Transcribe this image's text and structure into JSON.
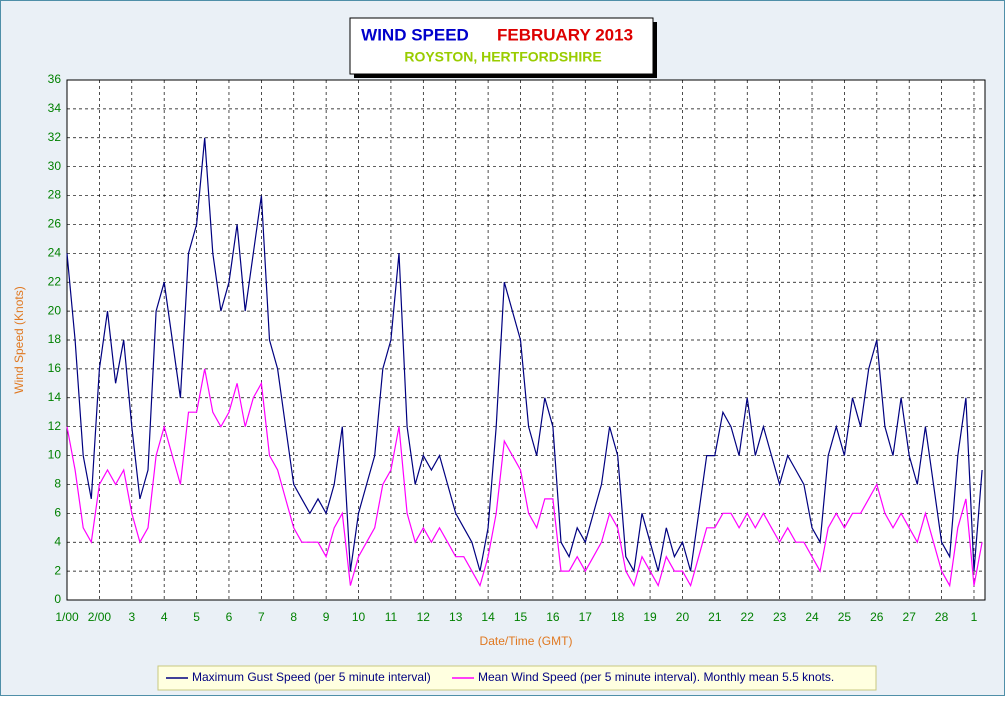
{
  "chart_data": {
    "type": "line",
    "title": "WIND SPEED",
    "title_period": "FEBRUARY 2013",
    "subtitle": "ROYSTON, HERTFORDSHIRE",
    "xlabel": "Date/Time (GMT)",
    "ylabel": "Wind Speed (Knots)",
    "xlim": [
      0,
      28.34
    ],
    "ylim": [
      0,
      36
    ],
    "yticks": [
      0,
      2,
      4,
      6,
      8,
      10,
      12,
      14,
      16,
      18,
      20,
      22,
      24,
      26,
      28,
      30,
      32,
      34,
      36
    ],
    "xticks": [
      {
        "value": 0,
        "label": "1/00"
      },
      {
        "value": 1,
        "label": "2/00"
      },
      {
        "value": 2,
        "label": "3"
      },
      {
        "value": 3,
        "label": "4"
      },
      {
        "value": 4,
        "label": "5"
      },
      {
        "value": 5,
        "label": "6"
      },
      {
        "value": 6,
        "label": "7"
      },
      {
        "value": 7,
        "label": "8"
      },
      {
        "value": 8,
        "label": "9"
      },
      {
        "value": 9,
        "label": "10"
      },
      {
        "value": 10,
        "label": "11"
      },
      {
        "value": 11,
        "label": "12"
      },
      {
        "value": 12,
        "label": "13"
      },
      {
        "value": 13,
        "label": "14"
      },
      {
        "value": 14,
        "label": "15"
      },
      {
        "value": 15,
        "label": "16"
      },
      {
        "value": 16,
        "label": "17"
      },
      {
        "value": 17,
        "label": "18"
      },
      {
        "value": 18,
        "label": "19"
      },
      {
        "value": 19,
        "label": "20"
      },
      {
        "value": 20,
        "label": "21"
      },
      {
        "value": 21,
        "label": "22"
      },
      {
        "value": 22,
        "label": "23"
      },
      {
        "value": 23,
        "label": "24"
      },
      {
        "value": 24,
        "label": "25"
      },
      {
        "value": 25,
        "label": "26"
      },
      {
        "value": 26,
        "label": "27"
      },
      {
        "value": 27,
        "label": "28"
      },
      {
        "value": 28,
        "label": "1"
      }
    ],
    "grid": true,
    "x": [
      0,
      0.25,
      0.5,
      0.75,
      1,
      1.25,
      1.5,
      1.75,
      2,
      2.25,
      2.5,
      2.75,
      3,
      3.25,
      3.5,
      3.75,
      4,
      4.25,
      4.5,
      4.75,
      5,
      5.25,
      5.5,
      5.75,
      6,
      6.25,
      6.5,
      6.75,
      7,
      7.25,
      7.5,
      7.75,
      8,
      8.25,
      8.5,
      8.75,
      9,
      9.25,
      9.5,
      9.75,
      10,
      10.25,
      10.5,
      10.75,
      11,
      11.25,
      11.5,
      11.75,
      12,
      12.25,
      12.5,
      12.75,
      13,
      13.25,
      13.5,
      13.75,
      14,
      14.25,
      14.5,
      14.75,
      15,
      15.25,
      15.5,
      15.75,
      16,
      16.25,
      16.5,
      16.75,
      17,
      17.25,
      17.5,
      17.75,
      18,
      18.25,
      18.5,
      18.75,
      19,
      19.25,
      19.5,
      19.75,
      20,
      20.25,
      20.5,
      20.75,
      21,
      21.25,
      21.5,
      21.75,
      22,
      22.25,
      22.5,
      22.75,
      23,
      23.25,
      23.5,
      23.75,
      24,
      24.25,
      24.5,
      24.75,
      25,
      25.25,
      25.5,
      25.75,
      26,
      26.25,
      26.5,
      26.75,
      27,
      27.25,
      27.5,
      27.75,
      28,
      28.25
    ],
    "series": [
      {
        "name": "Maximum Gust Speed (per 5 minute interval)",
        "color": "#000080",
        "values": [
          24,
          18,
          10,
          7,
          16,
          20,
          15,
          18,
          12,
          7,
          9,
          20,
          22,
          18,
          14,
          24,
          26,
          32,
          24,
          20,
          22,
          26,
          20,
          24,
          28,
          18,
          16,
          12,
          8,
          7,
          6,
          7,
          6,
          8,
          12,
          2,
          6,
          8,
          10,
          16,
          18,
          24,
          12,
          8,
          10,
          9,
          10,
          8,
          6,
          5,
          4,
          2,
          5,
          12,
          22,
          20,
          18,
          12,
          10,
          14,
          12,
          4,
          3,
          5,
          4,
          6,
          8,
          12,
          10,
          3,
          2,
          6,
          4,
          2,
          5,
          3,
          4,
          2,
          6,
          10,
          10,
          13,
          12,
          10,
          14,
          10,
          12,
          10,
          8,
          10,
          9,
          8,
          5,
          4,
          10,
          12,
          10,
          14,
          12,
          16,
          18,
          12,
          10,
          14,
          10,
          8,
          12,
          8,
          4,
          3,
          10,
          14,
          2,
          9
        ]
      },
      {
        "name": "Mean Wind Speed (per 5 minute interval). Monthly mean 5.5 knots.",
        "color": "#ff00ff",
        "values": [
          12,
          9,
          5,
          4,
          8,
          9,
          8,
          9,
          6,
          4,
          5,
          10,
          12,
          10,
          8,
          13,
          13,
          16,
          13,
          12,
          13,
          15,
          12,
          14,
          15,
          10,
          9,
          7,
          5,
          4,
          4,
          4,
          3,
          5,
          6,
          1,
          3,
          4,
          5,
          8,
          9,
          12,
          6,
          4,
          5,
          4,
          5,
          4,
          3,
          3,
          2,
          1,
          3,
          6,
          11,
          10,
          9,
          6,
          5,
          7,
          7,
          2,
          2,
          3,
          2,
          3,
          4,
          6,
          5,
          2,
          1,
          3,
          2,
          1,
          3,
          2,
          2,
          1,
          3,
          5,
          5,
          6,
          6,
          5,
          6,
          5,
          6,
          5,
          4,
          5,
          4,
          4,
          3,
          2,
          5,
          6,
          5,
          6,
          6,
          7,
          8,
          6,
          5,
          6,
          5,
          4,
          6,
          4,
          2,
          1,
          5,
          7,
          1,
          4
        ]
      }
    ]
  }
}
